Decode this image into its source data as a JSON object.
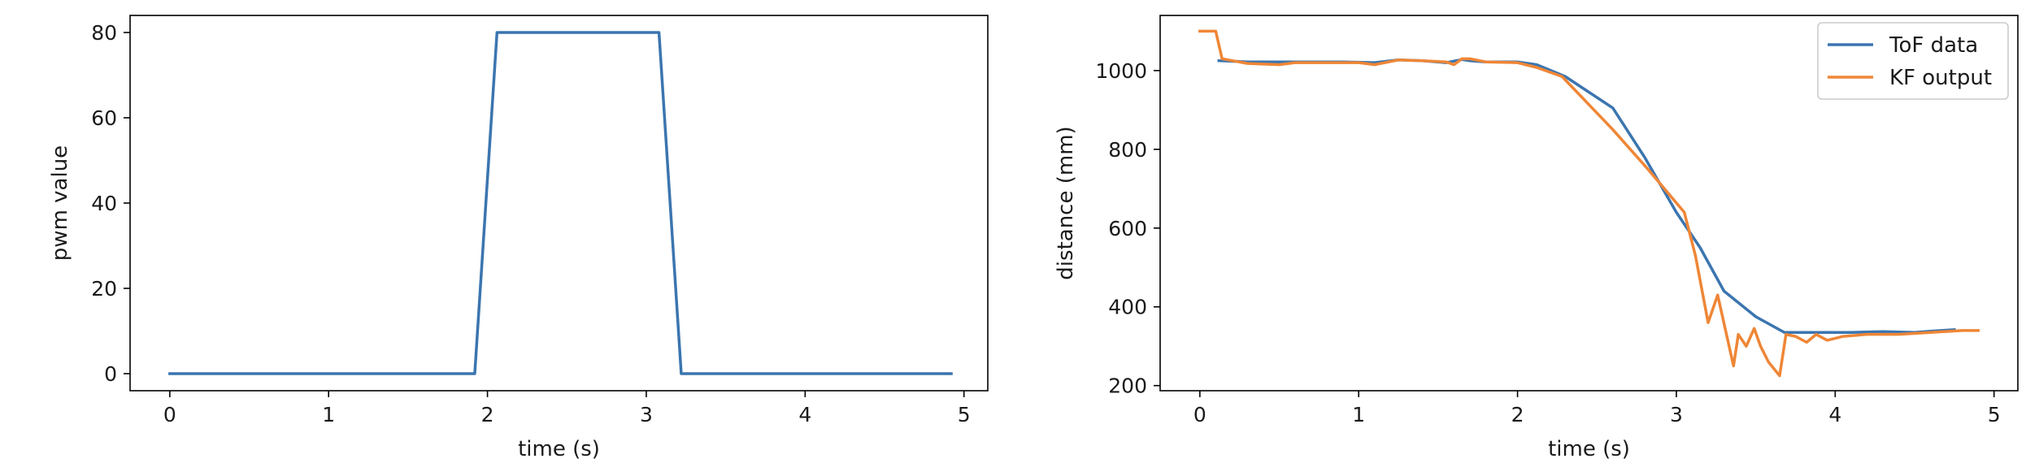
{
  "chart_data": [
    {
      "type": "line",
      "xlabel": "time (s)",
      "ylabel": "pwm value",
      "xlim": [
        -0.25,
        5.15
      ],
      "ylim": [
        -4,
        84
      ],
      "xticks": [
        0,
        1,
        2,
        3,
        4,
        5
      ],
      "yticks": [
        0,
        20,
        40,
        60,
        80
      ],
      "grid": false,
      "series": [
        {
          "color": "#3b75af",
          "x": [
            0,
            1.92,
            2.06,
            3.08,
            3.22,
            4.92
          ],
          "y": [
            0,
            0,
            80,
            80,
            0,
            0
          ]
        }
      ]
    },
    {
      "type": "line",
      "xlabel": "time (s)",
      "ylabel": "distance (mm)",
      "xlim": [
        -0.25,
        5.15
      ],
      "ylim": [
        187,
        1140
      ],
      "xticks": [
        0,
        1,
        2,
        3,
        4,
        5
      ],
      "yticks": [
        200,
        400,
        600,
        800,
        1000
      ],
      "grid": false,
      "legend": "top-right",
      "series": [
        {
          "name": "ToF data",
          "color": "#3b75af",
          "x": [
            0.12,
            0.3,
            0.5,
            0.7,
            0.9,
            1.1,
            1.25,
            1.4,
            1.55,
            1.65,
            1.7,
            1.8,
            1.9,
            2.0,
            2.12,
            2.3,
            2.6,
            2.8,
            3.0,
            3.15,
            3.3,
            3.5,
            3.68,
            3.8,
            3.95,
            4.1,
            4.3,
            4.5,
            4.6,
            4.75
          ],
          "y": [
            1025,
            1022,
            1022,
            1022,
            1022,
            1020,
            1027,
            1025,
            1020,
            1028,
            1025,
            1022,
            1022,
            1022,
            1015,
            985,
            905,
            780,
            640,
            550,
            440,
            375,
            335,
            335,
            335,
            335,
            337,
            335,
            338,
            342
          ]
        },
        {
          "name": "KF output",
          "color": "#ef8636",
          "x": [
            0,
            0.1,
            0.14,
            0.3,
            0.5,
            0.6,
            0.8,
            1.0,
            1.1,
            1.25,
            1.4,
            1.55,
            1.6,
            1.65,
            1.7,
            1.8,
            2.0,
            2.12,
            2.28,
            2.6,
            2.82,
            3.05,
            3.12,
            3.2,
            3.26,
            3.31,
            3.36,
            3.39,
            3.44,
            3.49,
            3.53,
            3.58,
            3.65,
            3.69,
            3.75,
            3.82,
            3.88,
            3.95,
            4.05,
            4.2,
            4.4,
            4.6,
            4.8,
            4.9
          ],
          "y": [
            1100,
            1100,
            1030,
            1018,
            1015,
            1020,
            1020,
            1020,
            1015,
            1027,
            1025,
            1022,
            1015,
            1030,
            1030,
            1022,
            1020,
            1008,
            985,
            850,
            750,
            640,
            530,
            360,
            430,
            340,
            250,
            330,
            300,
            345,
            300,
            260,
            225,
            330,
            325,
            310,
            330,
            315,
            325,
            330,
            330,
            335,
            340,
            340
          ]
        }
      ]
    }
  ]
}
